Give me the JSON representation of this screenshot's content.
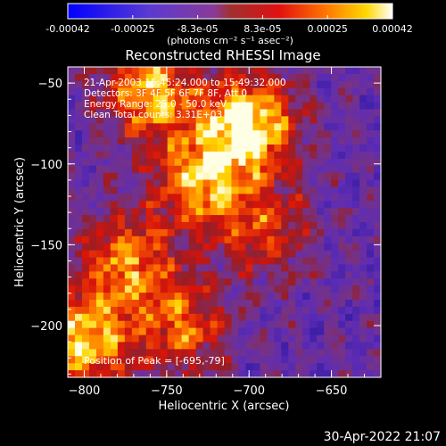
{
  "chart_data": {
    "type": "heatmap",
    "title": "Reconstructed RHESSI Image",
    "xlabel": "Heliocentric X (arcsec)",
    "ylabel": "Heliocentric Y (arcsec)",
    "xlim": [
      -810,
      -620
    ],
    "ylim": [
      -232,
      -40
    ],
    "x_ticks": [
      -800,
      -750,
      -700,
      -650
    ],
    "y_ticks": [
      -50,
      -100,
      -150,
      -200
    ],
    "colorbar": {
      "label": "(photons cm⁻² s⁻¹ asec⁻²)",
      "ticks": [
        "-0.00042",
        "-0.00025",
        "-8.3e-05",
        "8.3e-05",
        "0.00025",
        "0.00042"
      ],
      "range": [
        -0.00042,
        0.00042
      ]
    },
    "annotations": [
      "21-Apr-2003 15:45:24.000 to 15:49:32.000",
      "Detectors: 3F 4F 5F 6F 7F 8F, Att 0",
      "Energy Range: 25.0 - 50.0 keV",
      "Clean     Total counts: 3.31E+03"
    ],
    "peak_label": "Position of Peak = [-695,-79]",
    "peak": {
      "x": -695,
      "y": -79
    },
    "hot_sources": [
      {
        "x": -760,
        "y": -55,
        "weight": 0.8
      },
      {
        "x": -700,
        "y": -75,
        "weight": 1.0
      },
      {
        "x": -730,
        "y": -110,
        "weight": 0.75
      },
      {
        "x": -775,
        "y": -160,
        "weight": 0.7
      },
      {
        "x": -800,
        "y": -210,
        "weight": 0.85
      },
      {
        "x": -740,
        "y": -200,
        "weight": 0.6
      },
      {
        "x": -690,
        "y": -140,
        "weight": 0.5
      }
    ]
  },
  "footer": {
    "timestamp": "30-Apr-2022 21:07"
  }
}
